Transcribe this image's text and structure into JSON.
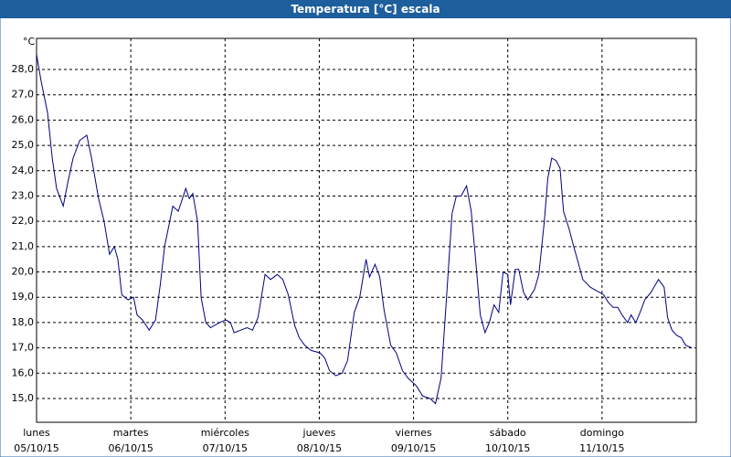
{
  "chart_data": {
    "type": "line",
    "title": "Temperatura [°C] escala",
    "y_unit": "°C",
    "xlim": [
      0,
      168
    ],
    "xticks": [
      {
        "value": 0,
        "label": "lunes",
        "date": "05/10/15"
      },
      {
        "value": 24,
        "label": "martes",
        "date": "06/10/15"
      },
      {
        "value": 48,
        "label": "miércoles",
        "date": "07/10/15"
      },
      {
        "value": 72,
        "label": "jueves",
        "date": "08/10/15"
      },
      {
        "value": 96,
        "label": "viernes",
        "date": "09/10/15"
      },
      {
        "value": 120,
        "label": "sábado",
        "date": "10/10/15"
      },
      {
        "value": 144,
        "label": "domingo",
        "date": "11/10/15"
      }
    ],
    "ylim": [
      14.06,
      29.23
    ],
    "yticks": [
      {
        "value": 15,
        "label": "15,0"
      },
      {
        "value": 16,
        "label": "16,0"
      },
      {
        "value": 17,
        "label": "17,0"
      },
      {
        "value": 18,
        "label": "18,0"
      },
      {
        "value": 19,
        "label": "19,0"
      },
      {
        "value": 20,
        "label": "20,0"
      },
      {
        "value": 21,
        "label": "21,0"
      },
      {
        "value": 22,
        "label": "22,0"
      },
      {
        "value": 23,
        "label": "23,0"
      },
      {
        "value": 24,
        "label": "24,0"
      },
      {
        "value": 25,
        "label": "25,0"
      },
      {
        "value": 26,
        "label": "26,0"
      },
      {
        "value": 27,
        "label": "27,0"
      },
      {
        "value": 28,
        "label": "28,0"
      }
    ],
    "grid": true,
    "series": [
      {
        "name": "Temperatura",
        "color": "#000080",
        "x": [
          0,
          1.2,
          2.8,
          4.0,
          5.1,
          6.8,
          7.9,
          9.3,
          11.0,
          12.8,
          14.0,
          15.8,
          17.2,
          18.6,
          19.8,
          20.7,
          21.7,
          23.3,
          24.7,
          25.6,
          27.0,
          28.7,
          30.3,
          31.5,
          32.6,
          34.7,
          36.1,
          38.0,
          38.9,
          39.8,
          41.0,
          41.9,
          43.1,
          44.3,
          46.6,
          48.2,
          49.4,
          50.3,
          52.0,
          53.6,
          55.0,
          56.4,
          58.2,
          59.6,
          61.3,
          62.7,
          64.1,
          65.7,
          66.9,
          68.3,
          69.9,
          72.2,
          73.4,
          74.6,
          76.2,
          77.8,
          79.2,
          80.9,
          82.3,
          83.9,
          84.8,
          86.2,
          87.4,
          88.5,
          90.2,
          91.6,
          93.2,
          94.6,
          96.7,
          98.3,
          100.2,
          101.6,
          103.0,
          104.4,
          105.8,
          106.9,
          108.1,
          109.5,
          110.7,
          111.8,
          113.0,
          114.2,
          115.3,
          116.5,
          117.7,
          118.8,
          120.0,
          120.7,
          121.9,
          122.8,
          124.0,
          125.1,
          126.8,
          127.9,
          129.3,
          130.2,
          131.2,
          132.3,
          133.3,
          134.2,
          135.6,
          136.8,
          137.9,
          139.1,
          141.0,
          142.1,
          143.3,
          144.4,
          145.6,
          146.8,
          148.0,
          149.1,
          150.5,
          151.4,
          152.6,
          153.7,
          154.9,
          156.5,
          157.2,
          158.4,
          159.8,
          160.7,
          161.8,
          163.0,
          164.2,
          165.3,
          166.9
        ],
        "values": [
          28.6,
          27.5,
          26.3,
          24.5,
          23.3,
          22.6,
          23.5,
          24.5,
          25.2,
          25.4,
          24.5,
          22.9,
          22.0,
          20.7,
          21.0,
          20.5,
          19.1,
          18.9,
          19.0,
          18.3,
          18.1,
          17.7,
          18.1,
          19.5,
          21.0,
          22.6,
          22.4,
          23.3,
          22.9,
          23.1,
          22.0,
          19.0,
          18.0,
          17.8,
          18.0,
          18.1,
          18.0,
          17.6,
          17.7,
          17.8,
          17.7,
          18.2,
          19.9,
          19.7,
          19.9,
          19.7,
          19.1,
          17.9,
          17.4,
          17.1,
          16.9,
          16.8,
          16.6,
          16.1,
          15.9,
          16.0,
          16.5,
          18.4,
          19.0,
          20.5,
          19.8,
          20.3,
          19.8,
          18.5,
          17.1,
          16.8,
          16.1,
          15.8,
          15.5,
          15.1,
          15.0,
          14.8,
          15.8,
          19.0,
          22.3,
          23.0,
          23.0,
          23.4,
          22.4,
          20.5,
          18.3,
          17.6,
          18.0,
          18.7,
          18.4,
          20.0,
          19.9,
          18.7,
          20.1,
          20.1,
          19.2,
          18.9,
          19.3,
          19.9,
          22.0,
          23.7,
          24.5,
          24.4,
          24.1,
          22.4,
          21.7,
          21.0,
          20.4,
          19.7,
          19.4,
          19.3,
          19.2,
          19.1,
          18.8,
          18.6,
          18.6,
          18.3,
          18.0,
          18.3,
          18.0,
          18.4,
          18.9,
          19.2,
          19.4,
          19.7,
          19.4,
          18.2,
          17.7,
          17.5,
          17.4,
          17.1,
          17.0
        ]
      }
    ]
  }
}
